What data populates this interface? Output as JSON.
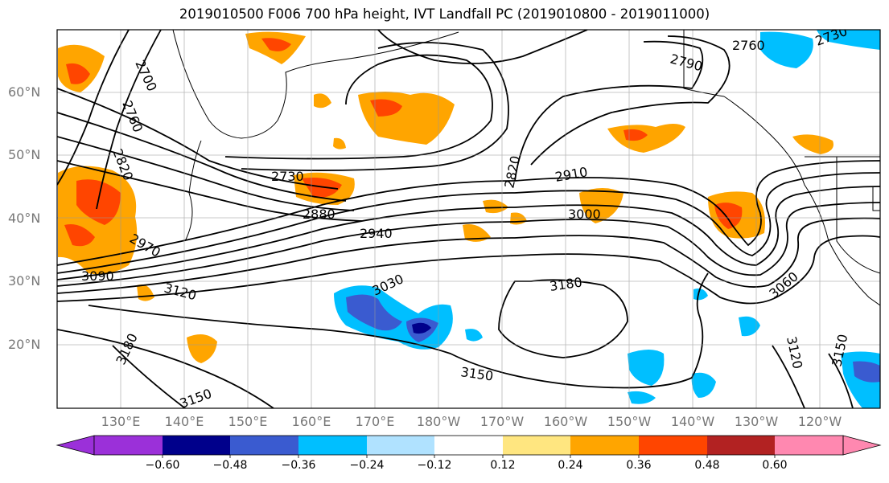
{
  "title": "2019010500 F006 700 hPa height, IVT Landfall PC (2019010800 - 2019011000)",
  "lat_labels": [
    "60°N",
    "50°N",
    "40°N",
    "30°N",
    "20°N"
  ],
  "lon_labels": [
    "130°E",
    "140°E",
    "150°E",
    "160°E",
    "170°E",
    "180°W",
    "170°W",
    "160°W",
    "150°W",
    "140°W",
    "130°W",
    "120°W"
  ],
  "contour_labels": [
    "2700",
    "2760",
    "2820",
    "2730",
    "2880",
    "2970",
    "3090",
    "3120",
    "3180",
    "3150",
    "2940",
    "3030",
    "3180",
    "3150",
    "2820",
    "2910",
    "3000",
    "2760",
    "2790",
    "2730",
    "3060",
    "3120",
    "3150"
  ],
  "colorbar": {
    "ticks": [
      "−0.60",
      "−0.48",
      "−0.36",
      "−0.24",
      "−0.12",
      "0.12",
      "0.24",
      "0.36",
      "0.48",
      "0.60"
    ],
    "colors": [
      "#9b30d9",
      "#00008b",
      "#3a5bd0",
      "#00bfff",
      "#b0e2ff",
      "#ffffff",
      "#ffe680",
      "#ffa500",
      "#ff4500",
      "#b22222",
      "#ff88b0"
    ]
  }
}
